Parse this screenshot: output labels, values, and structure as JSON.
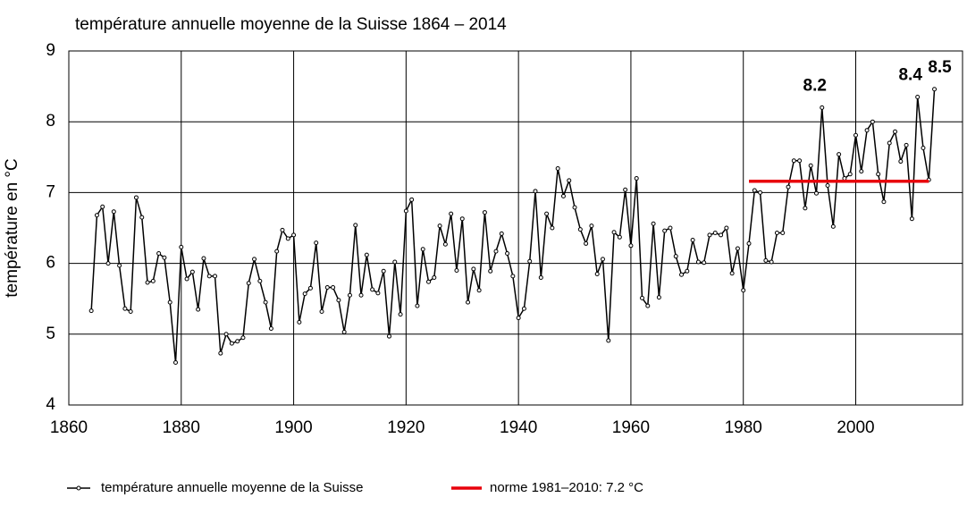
{
  "chart_data": {
    "type": "line",
    "title": "température annuelle moyenne de la Suisse 1864 – 2014",
    "y_label": "température en °C",
    "xlim": [
      1860,
      2019
    ],
    "xticks": [
      1860,
      1880,
      1900,
      1920,
      1940,
      1960,
      1980,
      2000
    ],
    "ylim": [
      4,
      9
    ],
    "yticks": [
      4,
      5,
      6,
      7,
      8,
      9
    ],
    "grid": true,
    "legend": "bottom",
    "series": [
      {
        "name": "température annuelle moyenne de la Suisse",
        "color": "#000000",
        "markers": true,
        "x": [
          1864,
          1865,
          1866,
          1867,
          1868,
          1869,
          1870,
          1871,
          1872,
          1873,
          1874,
          1875,
          1876,
          1877,
          1878,
          1879,
          1880,
          1881,
          1882,
          1883,
          1884,
          1885,
          1886,
          1887,
          1888,
          1889,
          1890,
          1891,
          1892,
          1893,
          1894,
          1895,
          1896,
          1897,
          1898,
          1899,
          1900,
          1901,
          1902,
          1903,
          1904,
          1905,
          1906,
          1907,
          1908,
          1909,
          1910,
          1911,
          1912,
          1913,
          1914,
          1915,
          1916,
          1917,
          1918,
          1919,
          1920,
          1921,
          1922,
          1923,
          1924,
          1925,
          1926,
          1927,
          1928,
          1929,
          1930,
          1931,
          1932,
          1933,
          1934,
          1935,
          1936,
          1937,
          1938,
          1939,
          1940,
          1941,
          1942,
          1943,
          1944,
          1945,
          1946,
          1947,
          1948,
          1949,
          1950,
          1951,
          1952,
          1953,
          1954,
          1955,
          1956,
          1957,
          1958,
          1959,
          1960,
          1961,
          1962,
          1963,
          1964,
          1965,
          1966,
          1967,
          1968,
          1969,
          1970,
          1971,
          1972,
          1973,
          1974,
          1975,
          1976,
          1977,
          1978,
          1979,
          1980,
          1981,
          1982,
          1983,
          1984,
          1985,
          1986,
          1987,
          1988,
          1989,
          1990,
          1991,
          1992,
          1993,
          1994,
          1995,
          1996,
          1997,
          1998,
          1999,
          2000,
          2001,
          2002,
          2003,
          2004,
          2005,
          2006,
          2007,
          2008,
          2009,
          2010,
          2011,
          2012,
          2013,
          2014
        ],
        "values": [
          5.33,
          6.68,
          6.8,
          6.0,
          6.73,
          5.97,
          5.36,
          5.32,
          6.93,
          6.65,
          5.73,
          5.75,
          6.14,
          6.08,
          5.45,
          4.6,
          6.23,
          5.78,
          5.88,
          5.35,
          6.07,
          5.82,
          5.82,
          4.73,
          5.0,
          4.87,
          4.9,
          4.95,
          5.72,
          6.06,
          5.75,
          5.45,
          5.08,
          6.17,
          6.47,
          6.35,
          6.4,
          5.17,
          5.57,
          5.65,
          6.29,
          5.32,
          5.66,
          5.66,
          5.48,
          5.03,
          5.55,
          6.54,
          5.55,
          6.12,
          5.63,
          5.58,
          5.89,
          4.97,
          6.02,
          5.28,
          6.74,
          6.9,
          5.4,
          6.2,
          5.74,
          5.8,
          6.53,
          6.27,
          6.7,
          5.9,
          6.63,
          5.45,
          5.92,
          5.62,
          6.72,
          5.89,
          6.17,
          6.42,
          6.14,
          5.82,
          5.23,
          5.36,
          6.03,
          7.02,
          5.8,
          6.7,
          6.5,
          7.34,
          6.95,
          7.17,
          6.79,
          6.48,
          6.28,
          6.53,
          5.85,
          6.06,
          4.91,
          6.44,
          6.37,
          7.04,
          6.25,
          7.2,
          5.51,
          5.4,
          6.56,
          5.52,
          6.46,
          6.5,
          6.1,
          5.84,
          5.89,
          6.33,
          6.02,
          6.01,
          6.4,
          6.43,
          6.4,
          6.5,
          5.86,
          6.21,
          5.62,
          6.28,
          7.03,
          7.0,
          6.04,
          6.02,
          6.43,
          6.43,
          7.08,
          7.45,
          7.45,
          6.78,
          7.38,
          6.99,
          8.2,
          7.1,
          6.52,
          7.54,
          7.2,
          7.26,
          7.81,
          7.3,
          7.88,
          8.0,
          7.26,
          6.87,
          7.7,
          7.86,
          7.44,
          7.67,
          6.63,
          8.35,
          7.63,
          7.18,
          8.46
        ]
      },
      {
        "name": "norme 1981–2010: 7.2 °C",
        "color": "#e8000b",
        "markers": false,
        "x": [
          1981,
          2013
        ],
        "values": [
          7.16,
          7.16
        ]
      }
    ],
    "annotations": [
      {
        "x": 1994,
        "text": "8.2"
      },
      {
        "x": 2011,
        "text": "8.4"
      },
      {
        "x": 2014,
        "text": "8.5"
      }
    ]
  }
}
